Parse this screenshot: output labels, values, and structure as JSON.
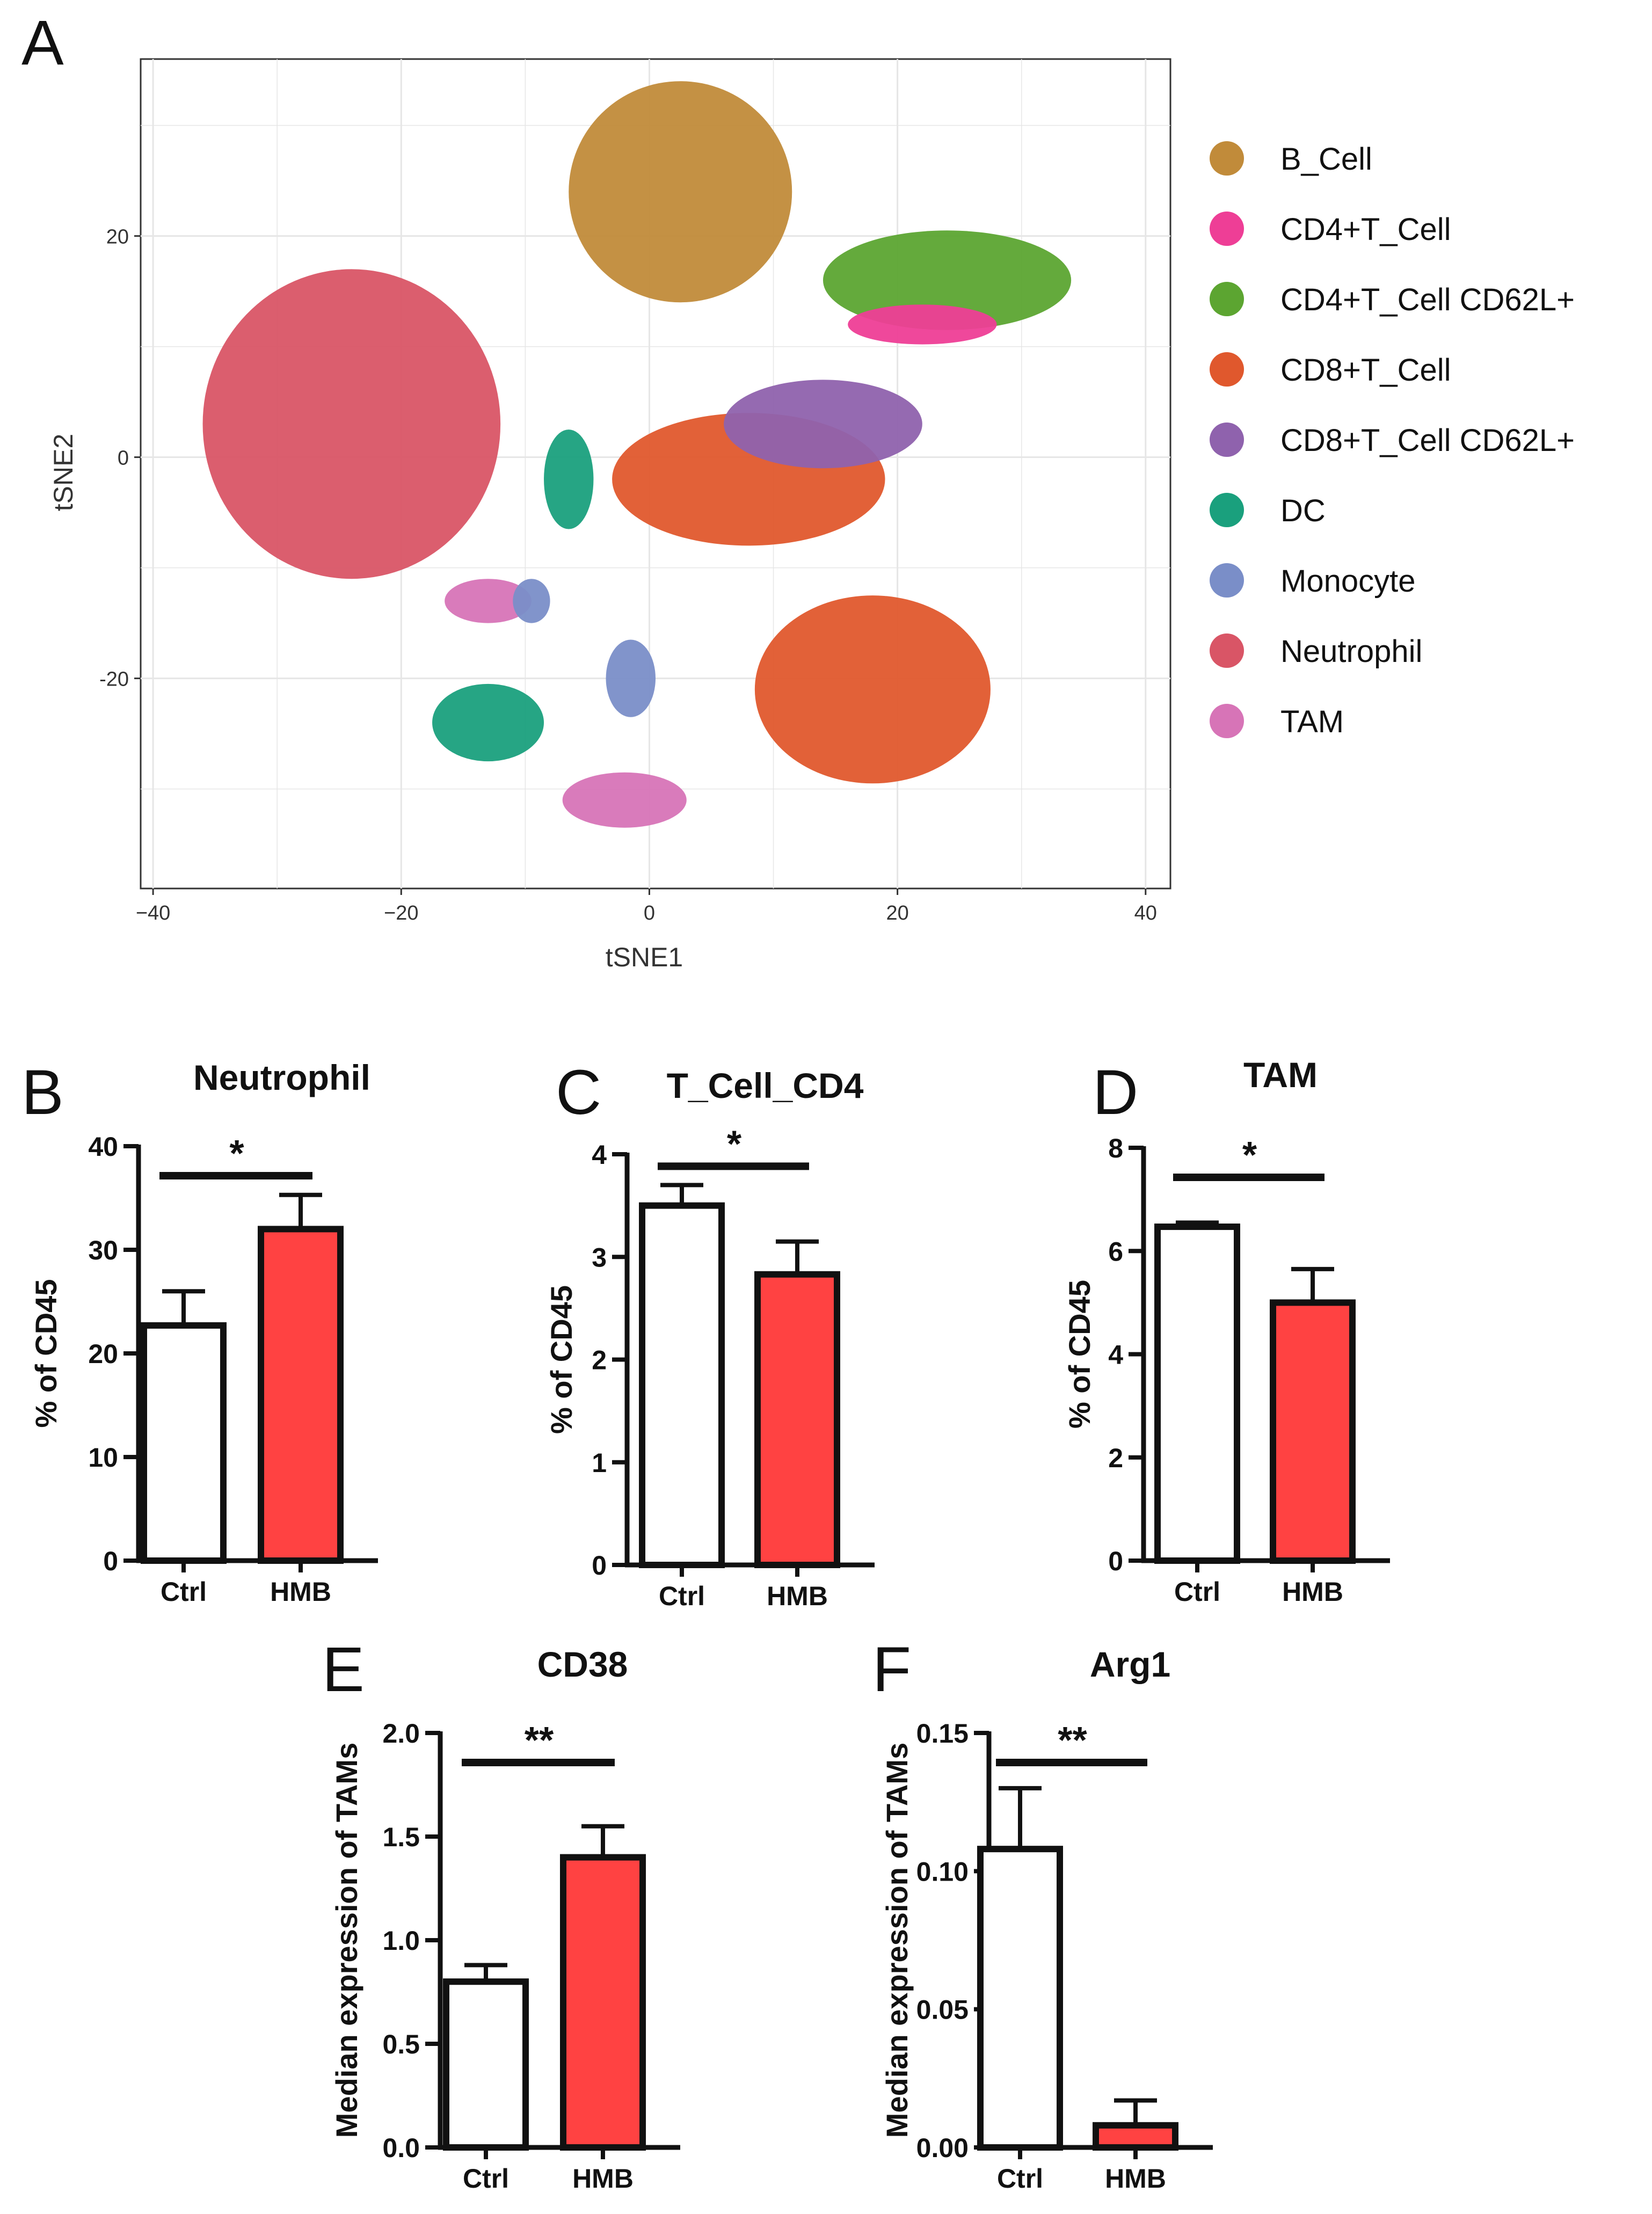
{
  "panels": {
    "A": "A",
    "B": "B",
    "C": "C",
    "D": "D",
    "E": "E",
    "F": "F"
  },
  "colors": {
    "hmb_bar": "#ff4242",
    "ctrl_bar": "#ffffff",
    "bar_stroke": "#111111",
    "grid": "#e6e6e6"
  },
  "chart_data": [
    {
      "id": "A",
      "type": "scatter",
      "title": "",
      "xlabel": "tSNE1",
      "ylabel": "tSNE2",
      "xlim": [
        -41,
        42
      ],
      "ylim": [
        -39,
        36
      ],
      "xticks": [
        -40,
        -20,
        0,
        20,
        40
      ],
      "yticks": [
        -20,
        0,
        20
      ],
      "xtick_labels": [
        "−40",
        "−20",
        "0",
        "20",
        "40"
      ],
      "ytick_labels": [
        "-20",
        "0",
        "20"
      ],
      "grid": true,
      "legend_position": "right",
      "legend": [
        {
          "name": "B_Cell",
          "color": "#c18b3a"
        },
        {
          "name": "CD4+T_Cell",
          "color": "#ee3e96"
        },
        {
          "name": "CD4+T_Cell CD62L+",
          "color": "#5ca531"
        },
        {
          "name": "CD8+T_Cell",
          "color": "#e0582d"
        },
        {
          "name": "CD8+T_Cell CD62L+",
          "color": "#8f62ad"
        },
        {
          "name": "DC",
          "color": "#1aa07d"
        },
        {
          "name": "Monocyte",
          "color": "#7a8ec8"
        },
        {
          "name": "Neutrophil",
          "color": "#d95566"
        },
        {
          "name": "TAM",
          "color": "#d774b7"
        }
      ],
      "clusters": [
        {
          "name": "Neutrophil",
          "center": [
            -24,
            3
          ],
          "radius": [
            12,
            14
          ]
        },
        {
          "name": "B_Cell",
          "center": [
            2.5,
            24
          ],
          "radius": [
            9,
            10
          ]
        },
        {
          "name": "CD4+T_Cell CD62L+",
          "center": [
            24,
            16
          ],
          "radius": [
            10,
            4.5
          ]
        },
        {
          "name": "CD8+T_Cell",
          "center": [
            8,
            -2
          ],
          "radius": [
            11,
            6
          ]
        },
        {
          "name": "CD8+T_Cell",
          "center": [
            18,
            -21
          ],
          "radius": [
            9.5,
            8.5
          ]
        },
        {
          "name": "CD8+T_Cell CD62L+",
          "center": [
            14,
            3
          ],
          "radius": [
            8,
            4
          ]
        },
        {
          "name": "DC",
          "center": [
            -13,
            -24
          ],
          "radius": [
            4.5,
            3.5
          ]
        },
        {
          "name": "DC",
          "center": [
            -6.5,
            -2
          ],
          "radius": [
            2,
            4.5
          ]
        },
        {
          "name": "TAM",
          "center": [
            -2,
            -31
          ],
          "radius": [
            5,
            2.5
          ]
        },
        {
          "name": "TAM",
          "center": [
            -13,
            -13
          ],
          "radius": [
            3.5,
            2
          ]
        },
        {
          "name": "Monocyte",
          "center": [
            -1.5,
            -20
          ],
          "radius": [
            2,
            3.5
          ]
        },
        {
          "name": "Monocyte",
          "center": [
            -9.5,
            -13
          ],
          "radius": [
            1.5,
            2
          ]
        },
        {
          "name": "CD4+T_Cell",
          "center": [
            22,
            12
          ],
          "radius": [
            6,
            1.8
          ]
        }
      ]
    },
    {
      "id": "B",
      "type": "bar",
      "title": "Neutrophil",
      "categories": [
        "Ctrl",
        "HMB"
      ],
      "values": [
        22.7,
        32.0
      ],
      "errors": [
        3.3,
        3.3
      ],
      "ylabel": "% of CD45",
      "ylim": [
        0,
        40
      ],
      "yticks": [
        0,
        10,
        20,
        30,
        40
      ],
      "ytick_labels": [
        "0",
        "10",
        "20",
        "30",
        "40"
      ],
      "significance": "*"
    },
    {
      "id": "C",
      "type": "bar",
      "title": "T_Cell_CD4",
      "categories": [
        "Ctrl",
        "HMB"
      ],
      "values": [
        3.5,
        2.83
      ],
      "errors": [
        0.2,
        0.32
      ],
      "ylabel": "% of CD45",
      "ylim": [
        0,
        4
      ],
      "yticks": [
        0,
        1,
        2,
        3,
        4
      ],
      "ytick_labels": [
        "0",
        "1",
        "2",
        "3",
        "4"
      ],
      "significance": "*"
    },
    {
      "id": "D",
      "type": "bar",
      "title": "TAM",
      "categories": [
        "Ctrl",
        "HMB"
      ],
      "values": [
        6.47,
        5.0
      ],
      "errors": [
        0.08,
        0.65
      ],
      "ylabel": "% of CD45",
      "ylim": [
        0,
        8
      ],
      "yticks": [
        0,
        2,
        4,
        6,
        8
      ],
      "ytick_labels": [
        "0",
        "2",
        "4",
        "6",
        "8"
      ],
      "significance": "*"
    },
    {
      "id": "E",
      "type": "bar",
      "title": "CD38",
      "categories": [
        "Ctrl",
        "HMB"
      ],
      "values": [
        0.8,
        1.4
      ],
      "errors": [
        0.08,
        0.15
      ],
      "ylabel": "Median expression of TAMs",
      "ylim": [
        0,
        2.0
      ],
      "yticks": [
        0,
        0.5,
        1.0,
        1.5,
        2.0
      ],
      "ytick_labels": [
        "0.0",
        "0.5",
        "1.0",
        "1.5",
        "2.0"
      ],
      "significance": "**"
    },
    {
      "id": "F",
      "type": "bar",
      "title": "Arg1",
      "categories": [
        "Ctrl",
        "HMB"
      ],
      "values": [
        0.108,
        0.008
      ],
      "errors": [
        0.022,
        0.009
      ],
      "ylabel": "Median expression of TAMs",
      "ylim": [
        0,
        0.15
      ],
      "yticks": [
        0,
        0.05,
        0.1,
        0.15
      ],
      "ytick_labels": [
        "0.00",
        "0.05",
        "0.10",
        "0.15"
      ],
      "significance": "**"
    }
  ]
}
